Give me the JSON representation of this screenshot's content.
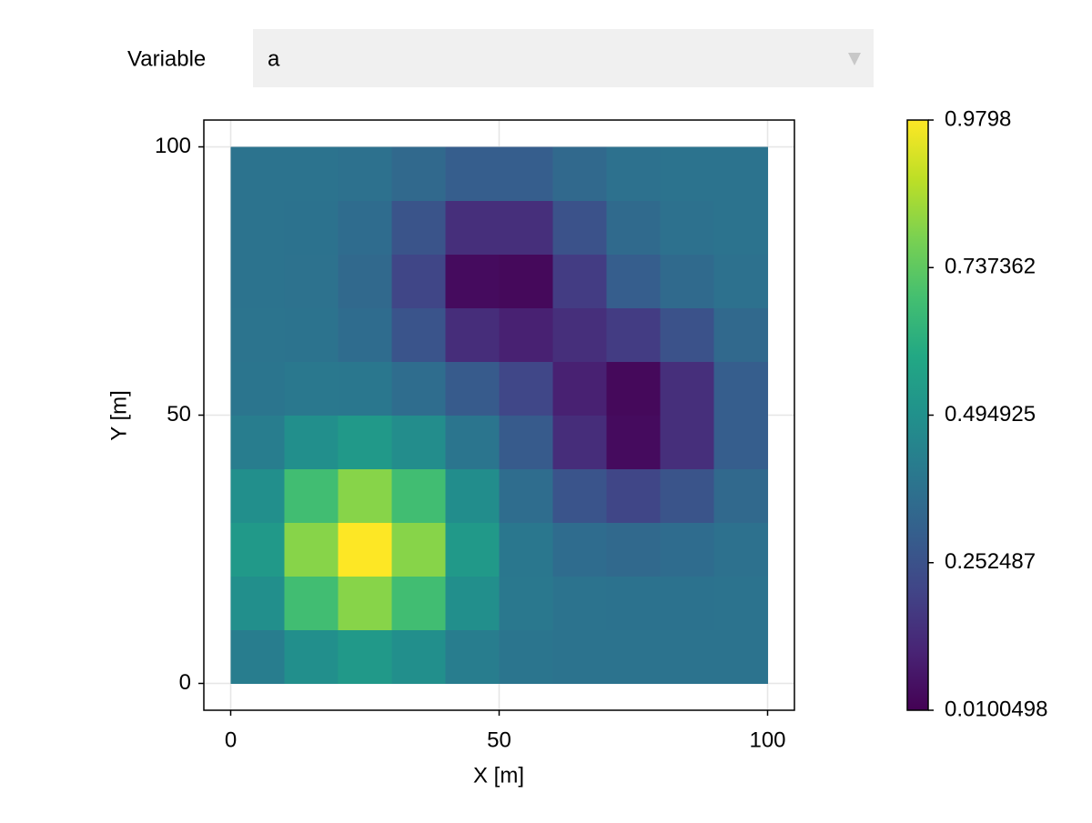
{
  "menu": {
    "label": "Variable",
    "selected": "a"
  },
  "chart_data": {
    "type": "heatmap",
    "x_label": "X [m]",
    "y_label": "Y [m]",
    "x": [
      5,
      15,
      25,
      35,
      45,
      55,
      65,
      75,
      85,
      95
    ],
    "y": [
      5,
      15,
      25,
      35,
      45,
      55,
      65,
      75,
      85,
      95
    ],
    "z": [
      [
        0.417,
        0.486,
        0.529,
        0.486,
        0.417,
        0.387,
        0.38,
        0.38,
        0.38,
        0.38
      ],
      [
        0.486,
        0.679,
        0.804,
        0.679,
        0.486,
        0.398,
        0.378,
        0.376,
        0.376,
        0.379
      ],
      [
        0.529,
        0.804,
        0.98,
        0.804,
        0.527,
        0.396,
        0.352,
        0.338,
        0.35,
        0.37
      ],
      [
        0.486,
        0.679,
        0.804,
        0.679,
        0.479,
        0.357,
        0.262,
        0.211,
        0.26,
        0.338
      ],
      [
        0.417,
        0.486,
        0.527,
        0.478,
        0.387,
        0.288,
        0.133,
        0.039,
        0.14,
        0.296
      ],
      [
        0.387,
        0.398,
        0.396,
        0.356,
        0.288,
        0.213,
        0.098,
        0.031,
        0.139,
        0.296
      ],
      [
        0.381,
        0.378,
        0.352,
        0.262,
        0.134,
        0.098,
        0.14,
        0.181,
        0.256,
        0.338
      ],
      [
        0.38,
        0.375,
        0.338,
        0.211,
        0.039,
        0.031,
        0.181,
        0.296,
        0.345,
        0.37
      ],
      [
        0.38,
        0.376,
        0.35,
        0.26,
        0.14,
        0.139,
        0.256,
        0.345,
        0.372,
        0.379
      ],
      [
        0.38,
        0.379,
        0.37,
        0.338,
        0.296,
        0.296,
        0.338,
        0.37,
        0.379,
        0.38
      ]
    ],
    "xlim": [
      -5,
      105
    ],
    "ylim": [
      -5,
      105
    ],
    "xticks": [
      0,
      50,
      100
    ],
    "yticks": [
      0,
      50,
      100
    ],
    "grid": true,
    "colormap": "viridis",
    "clim": [
      0.0100498,
      0.9798
    ],
    "cticks": [
      0.0100498,
      0.252487,
      0.494925,
      0.737362,
      0.9798
    ]
  }
}
